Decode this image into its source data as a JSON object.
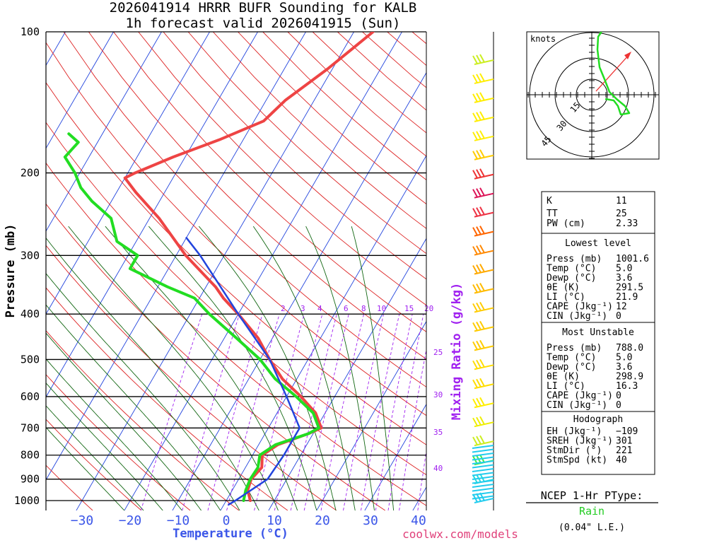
{
  "header": {
    "line1": "2026041914 HRRR BUFR Sounding for KALB",
    "line2": "1h forecast valid 2026041915 (Sun)"
  },
  "axes": {
    "ylabel": "Pressure (mb)",
    "xlabel": "Temperature (°C)",
    "pressure_ticks": [
      "100",
      "200",
      "300",
      "400",
      "500",
      "600",
      "700",
      "800",
      "900",
      "1000"
    ],
    "temp_ticks": [
      "−30",
      "−20",
      "−10",
      "0",
      "10",
      "20",
      "30",
      "40"
    ],
    "mixing_ratio_label": "Mixing Ratio (g/kg)",
    "mixing_top": [
      "2",
      "3",
      "4",
      "6",
      "8",
      "10",
      "15",
      "20"
    ],
    "theta_e_labels": [
      "25",
      "30",
      "35",
      "40"
    ]
  },
  "hodograph": {
    "units": "knots",
    "ring_labels": [
      "15",
      "30",
      "45"
    ]
  },
  "indices": {
    "k_label": "K",
    "k": "11",
    "tt_label": "TT",
    "tt": "25",
    "pw_label": "PW (cm)",
    "pw": "2.33"
  },
  "lowest_level": {
    "title": "Lowest level",
    "rows": [
      {
        "label": "Press (mb)",
        "value": "1001.6"
      },
      {
        "label": "Temp (°C)",
        "value": "5.0"
      },
      {
        "label": "Dewp (°C)",
        "value": "3.6"
      },
      {
        "label": "θE (K)",
        "value": "291.5"
      },
      {
        "label": "LI (°C)",
        "value": "21.9"
      },
      {
        "label": "CAPE (Jkg⁻¹)",
        "value": "12"
      },
      {
        "label": "CIN (Jkg⁻¹)",
        "value": "0"
      }
    ]
  },
  "most_unstable": {
    "title": "Most Unstable",
    "rows": [
      {
        "label": "Press (mb)",
        "value": "788.0"
      },
      {
        "label": "Temp (°C)",
        "value": "5.0"
      },
      {
        "label": "Dewp (°C)",
        "value": "3.6"
      },
      {
        "label": "θE (K)",
        "value": "298.9"
      },
      {
        "label": "LI (°C)",
        "value": "16.3"
      },
      {
        "label": "CAPE (Jkg⁻¹)",
        "value": "0"
      },
      {
        "label": "CIN (Jkg⁻¹)",
        "value": "0"
      }
    ]
  },
  "hodo_params": {
    "title": "Hodograph",
    "rows": [
      {
        "label": "EH (Jkg⁻¹)",
        "value": "−109"
      },
      {
        "label": "SREH (Jkg⁻¹)",
        "value": "301"
      },
      {
        "label": "StmDir (°)",
        "value": "221"
      },
      {
        "label": "StmSpd (kt)",
        "value": "40"
      }
    ]
  },
  "ptype": {
    "title": "NCEP 1-Hr PType:",
    "value": "Rain",
    "le": "(0.04\" L.E.)"
  },
  "credit": "coolwx.com/models",
  "colors": {
    "temp": "#ee4444",
    "dewp": "#22dd22",
    "parcel": "#2244dd",
    "isotherm": "#2244dd",
    "dry_adiabat": "#dd2222",
    "moist_adiabat": "#116611",
    "mixing": "#a020f0"
  },
  "chart_data": {
    "type": "line",
    "title": "Skew-T sounding",
    "xlabel": "Temperature (°C)",
    "ylabel": "Pressure (mb)",
    "xlim": [
      -35,
      42
    ],
    "ylim": [
      1020,
      100
    ],
    "series": [
      {
        "name": "Temperature",
        "points": [
          [
            1000,
            5.0
          ],
          [
            950,
            3.2
          ],
          [
            900,
            2.6
          ],
          [
            850,
            3.4
          ],
          [
            800,
            2.0
          ],
          [
            760,
            4.0
          ],
          [
            720,
            9.0
          ],
          [
            700,
            11.0
          ],
          [
            650,
            8.0
          ],
          [
            600,
            3.0
          ],
          [
            550,
            -3.0
          ],
          [
            500,
            -8.0
          ],
          [
            450,
            -13.0
          ],
          [
            400,
            -20.0
          ],
          [
            370,
            -25.0
          ],
          [
            350,
            -28.0
          ],
          [
            300,
            -38.0
          ],
          [
            250,
            -48.0
          ],
          [
            220,
            -56.0
          ],
          [
            205,
            -60.0
          ],
          [
            200,
            -58.5
          ],
          [
            185,
            -52.5
          ],
          [
            170,
            -45.0
          ],
          [
            155,
            -38.0
          ],
          [
            140,
            -36.0
          ],
          [
            120,
            -31.0
          ],
          [
            100,
            -26.0
          ]
        ]
      },
      {
        "name": "Dewpoint",
        "points": [
          [
            1000,
            3.6
          ],
          [
            950,
            2.8
          ],
          [
            900,
            2.4
          ],
          [
            850,
            2.6
          ],
          [
            800,
            1.5
          ],
          [
            760,
            3.5
          ],
          [
            720,
            9.0
          ],
          [
            700,
            10.5
          ],
          [
            650,
            7.5
          ],
          [
            600,
            2.0
          ],
          [
            550,
            -4.5
          ],
          [
            500,
            -10.0
          ],
          [
            450,
            -17.5
          ],
          [
            400,
            -26.0
          ],
          [
            370,
            -31.0
          ],
          [
            350,
            -38.0
          ],
          [
            320,
            -48.0
          ],
          [
            300,
            -48.0
          ],
          [
            280,
            -54.0
          ],
          [
            250,
            -58.0
          ],
          [
            230,
            -64.0
          ],
          [
            215,
            -68.0
          ],
          [
            200,
            -71.0
          ],
          [
            185,
            -75.0
          ],
          [
            172,
            -74.0
          ],
          [
            165,
            -77.0
          ]
        ]
      },
      {
        "name": "Parcel",
        "points": [
          [
            1020,
            1.0
          ],
          [
            1000,
            1.9
          ],
          [
            900,
            6.0
          ],
          [
            800,
            6.5
          ],
          [
            700,
            6.5
          ],
          [
            600,
            0.0
          ],
          [
            500,
            -8.0
          ],
          [
            400,
            -20.0
          ],
          [
            300,
            -35.0
          ],
          [
            275,
            -40.0
          ]
        ]
      }
    ]
  }
}
